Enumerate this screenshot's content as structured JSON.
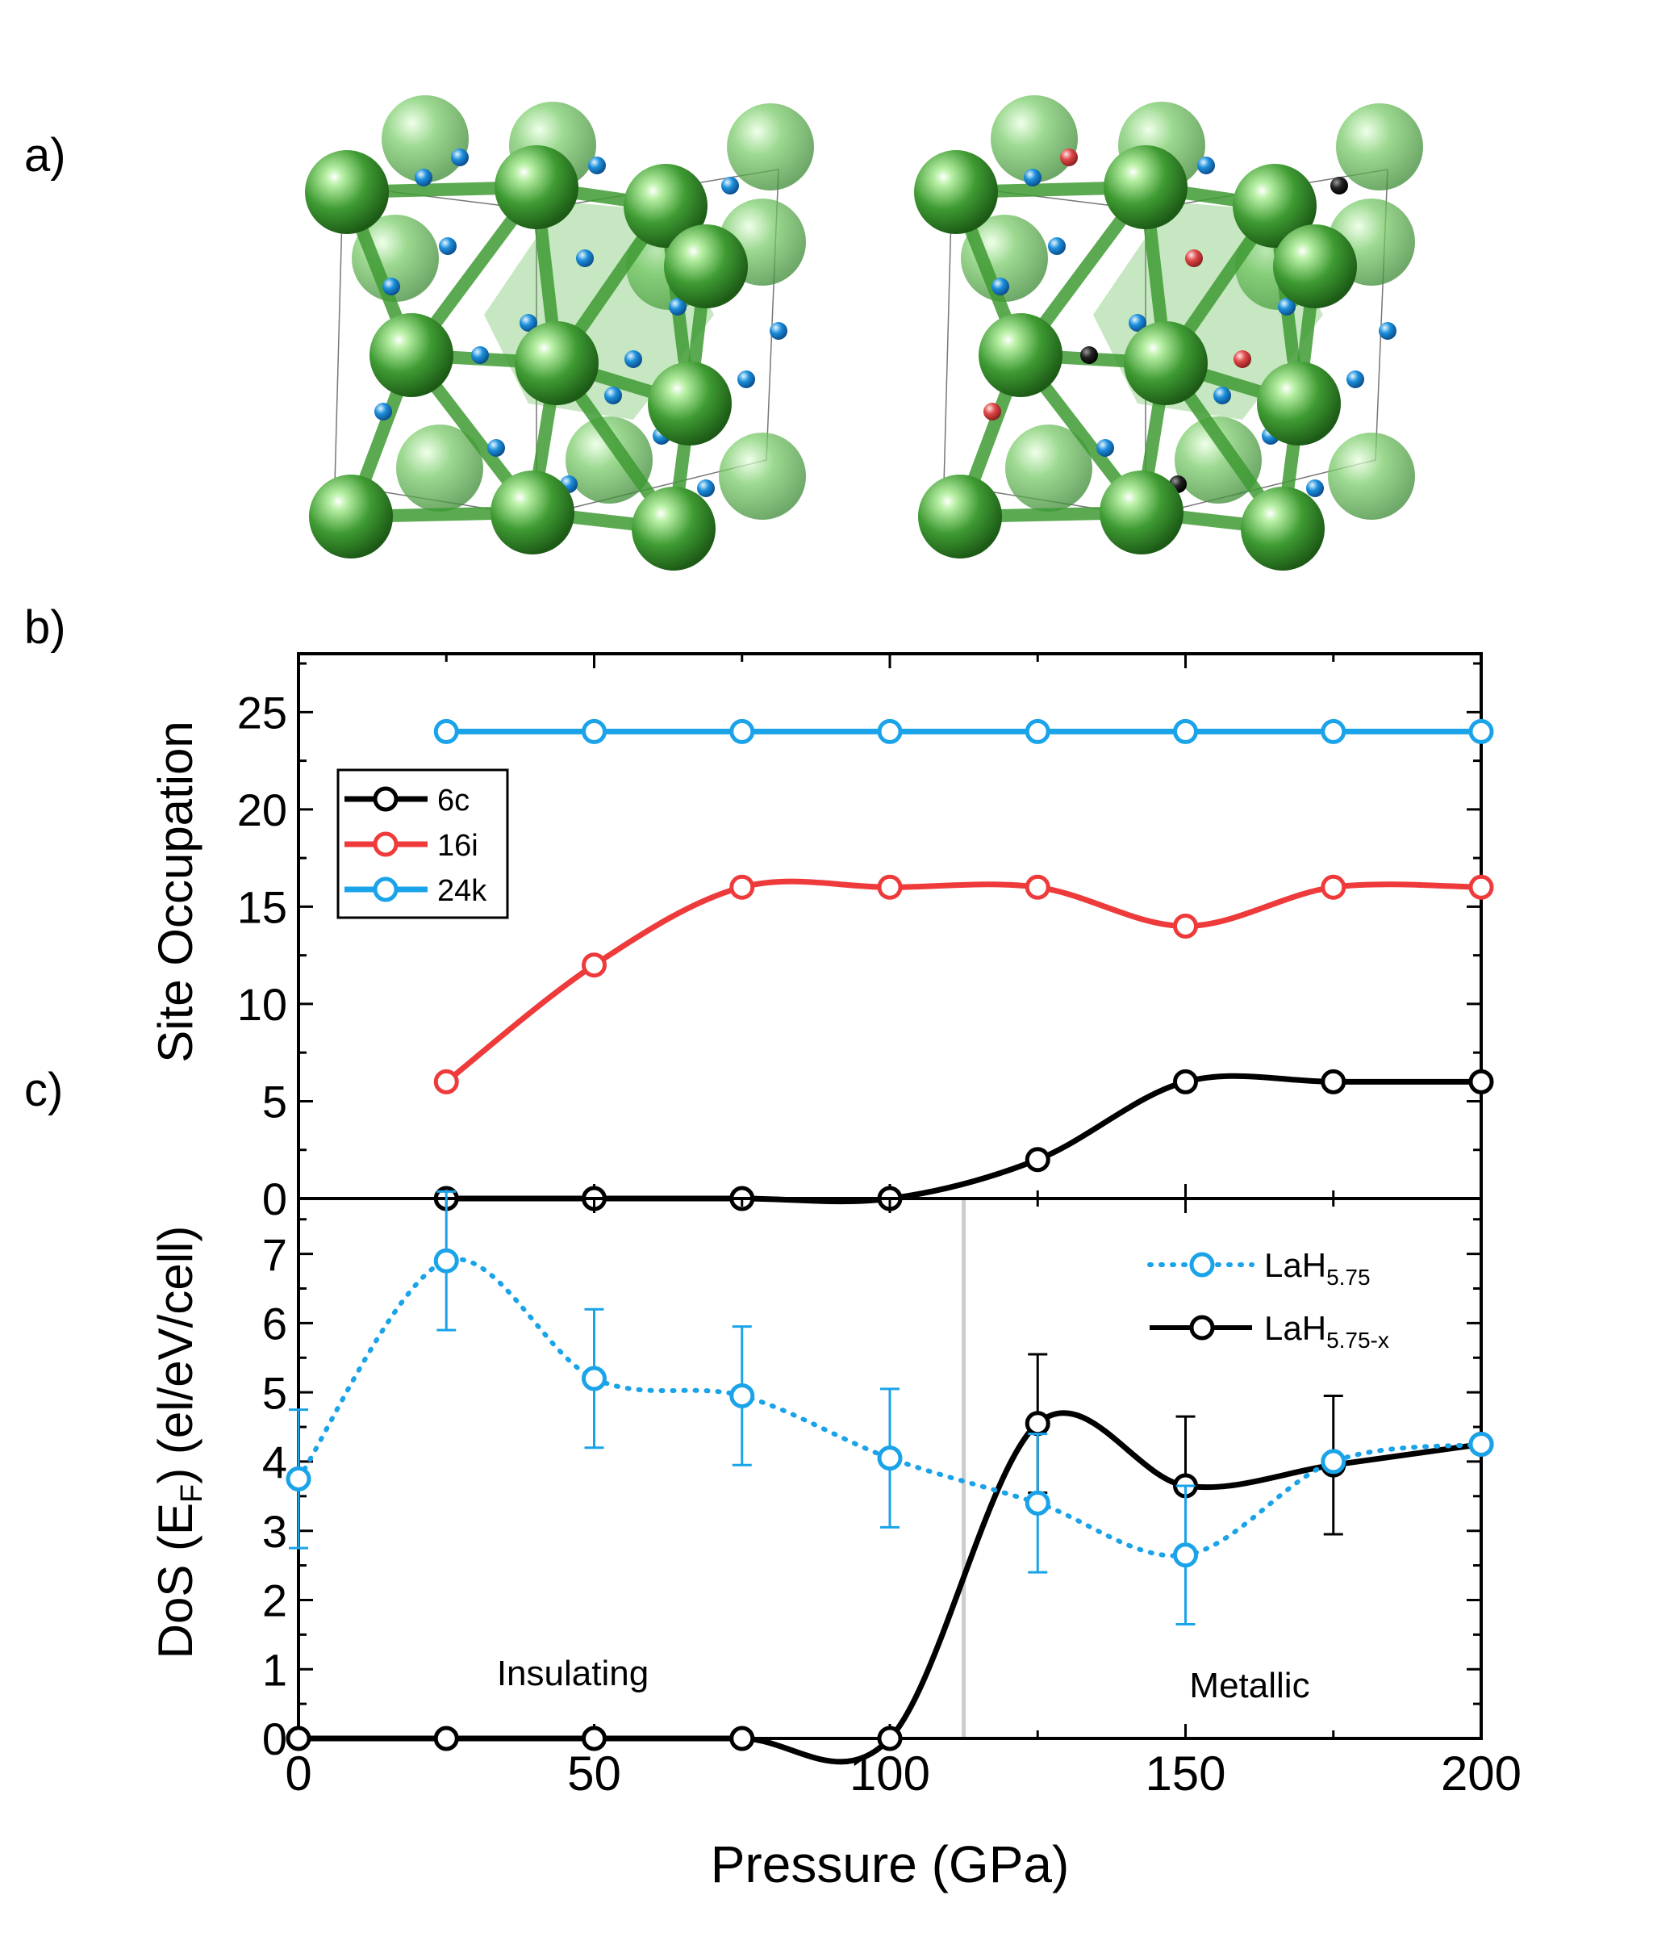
{
  "panels": {
    "a": "a)",
    "b": "b)",
    "c": "c)"
  },
  "colors": {
    "la_green": "#3c9a32",
    "h_blue": "#1c8fdc",
    "h_red": "#e04848",
    "h_black": "#111111",
    "series_black": "#000000",
    "series_red": "#ee3a3a",
    "series_blue": "#1aa3e8",
    "guide_gray": "#cccccc"
  },
  "chart_data": [
    {
      "type": "line",
      "panel": "b",
      "title": "",
      "xlabel": "",
      "ylabel": "Site Occupation",
      "xlim": [
        0,
        200
      ],
      "ylim": [
        0,
        28
      ],
      "xticks": [
        0,
        50,
        100,
        150,
        200
      ],
      "yticks": [
        0,
        5,
        10,
        15,
        20,
        25
      ],
      "ytick_labels": [
        "0",
        "5",
        "10",
        "15",
        "20",
        "25"
      ],
      "legend_position": "middle-left",
      "series": [
        {
          "name": "6c",
          "color": "#000000",
          "x": [
            25,
            50,
            75,
            100,
            125,
            150,
            175,
            200
          ],
          "values": [
            0,
            0,
            0,
            0,
            2,
            6,
            6,
            6
          ]
        },
        {
          "name": "16i",
          "color": "#ee3a3a",
          "x": [
            25,
            50,
            75,
            100,
            125,
            150,
            175,
            200
          ],
          "values": [
            6,
            12,
            16,
            16,
            16,
            14,
            16,
            16
          ]
        },
        {
          "name": "24k",
          "color": "#1aa3e8",
          "x": [
            25,
            50,
            75,
            100,
            125,
            150,
            175,
            200
          ],
          "values": [
            24,
            24,
            24,
            24,
            24,
            24,
            24,
            24
          ]
        }
      ]
    },
    {
      "type": "line",
      "panel": "c",
      "title": "",
      "xlabel": "Pressure (GPa)",
      "ylabel": "DoS (E",
      "ylabel_sub": "F",
      "ylabel_end": ") (el/eV/cell)",
      "xlim": [
        0,
        200
      ],
      "ylim": [
        0,
        7.8
      ],
      "xticks": [
        0,
        50,
        100,
        150,
        200
      ],
      "xtick_labels": [
        "0",
        "50",
        "100",
        "150",
        "200"
      ],
      "yticks": [
        0,
        1,
        2,
        3,
        4,
        5,
        6,
        7
      ],
      "ytick_labels": [
        "0",
        "1",
        "2",
        "3",
        "4",
        "5",
        "6",
        "7"
      ],
      "transition_pressure": 112.5,
      "annotations": [
        {
          "text": "Insulating",
          "x": 46,
          "y": 0.85
        },
        {
          "text": "Metallic",
          "x": 160,
          "y": 0.7
        }
      ],
      "legend_position": "top-right",
      "series": [
        {
          "name": "LaH",
          "name_sub": "5.75",
          "style": "dotted",
          "color": "#1aa3e8",
          "x": [
            0,
            25,
            50,
            75,
            100,
            125,
            150,
            175,
            200
          ],
          "values": [
            3.75,
            6.9,
            5.2,
            4.95,
            4.05,
            3.4,
            2.65,
            4.0,
            4.25
          ],
          "error": [
            1.0,
            1.0,
            1.0,
            1.0,
            1.0,
            1.0,
            1.0,
            null,
            null
          ]
        },
        {
          "name": "LaH",
          "name_sub": "5.75-x",
          "style": "solid",
          "color": "#000000",
          "x": [
            0,
            25,
            50,
            75,
            100,
            125,
            150,
            175,
            200
          ],
          "values": [
            0,
            0,
            0,
            0,
            0,
            4.55,
            3.65,
            3.95,
            4.25
          ],
          "error": [
            null,
            null,
            null,
            null,
            null,
            1.0,
            1.0,
            1.0,
            null
          ]
        }
      ]
    }
  ]
}
